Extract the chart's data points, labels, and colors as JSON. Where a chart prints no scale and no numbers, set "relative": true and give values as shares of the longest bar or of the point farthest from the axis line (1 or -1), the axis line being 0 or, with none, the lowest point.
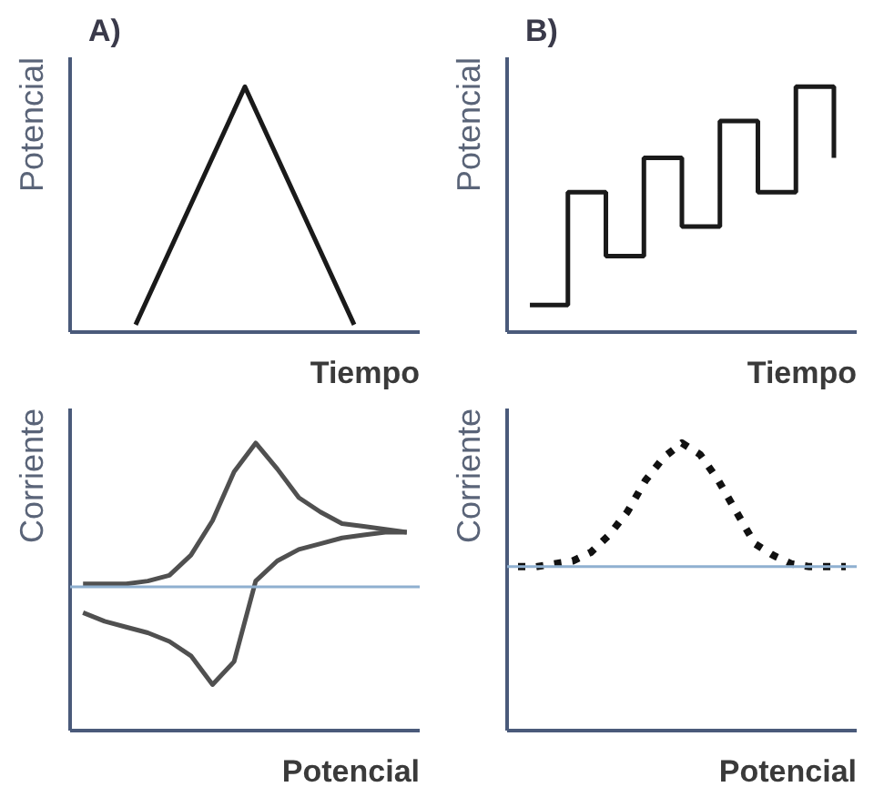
{
  "chart_data": [
    {
      "type": "line",
      "title": "A)",
      "xlabel": "Tiempo",
      "ylabel": "Potencial",
      "relative": true,
      "tick_labels": false,
      "categories": [
        null,
        null,
        null
      ],
      "series": [
        {
          "color": "#1a1a1a",
          "values": [
            0.03,
            1,
            0.03
          ]
        }
      ]
    },
    {
      "type": "step",
      "title": "B)",
      "xlabel": "Tiempo",
      "ylabel": "Potencial",
      "relative": true,
      "tick_labels": false,
      "categories": [
        null,
        null,
        null,
        null,
        null,
        null,
        null,
        null,
        null
      ],
      "series": [
        {
          "color": "#1a1a1a",
          "values": [
            0.11,
            0.57,
            0.31,
            0.71,
            0.43,
            0.86,
            0.57,
            1,
            0.71
          ]
        }
      ]
    },
    {
      "type": "line",
      "xlabel": "Potencial",
      "ylabel": "Corriente",
      "relative": true,
      "tick_labels": false,
      "categories": [
        null,
        null,
        null,
        null,
        null,
        null,
        null,
        null,
        null,
        null,
        null,
        null,
        null,
        null,
        null,
        null
      ],
      "ref_lines": [
        {
          "axis": "y",
          "value": 0.5,
          "color": "#8fb0d0"
        }
      ],
      "series": [
        {
          "color": "#505050",
          "values": [
            0.51,
            0.51,
            0.51,
            0.52,
            0.54,
            0.61,
            0.73,
            0.9,
            1,
            0.91,
            0.81,
            0.76,
            0.72,
            0.71,
            0.7,
            0.69
          ]
        },
        {
          "color": "#505050",
          "values": [
            0.41,
            0.38,
            0.36,
            0.34,
            0.31,
            0.26,
            0.16,
            0.24,
            0.52,
            0.59,
            0.63,
            0.65,
            0.67,
            0.68,
            0.69,
            0.69
          ]
        }
      ]
    },
    {
      "type": "line",
      "xlabel": "Potencial",
      "ylabel": "Corriente",
      "relative": true,
      "tick_labels": false,
      "line_style": "dotted",
      "categories": [
        null,
        null,
        null,
        null,
        null,
        null,
        null,
        null,
        null,
        null,
        null,
        null,
        null,
        null,
        null,
        null,
        null,
        null,
        null
      ],
      "ref_lines": [
        {
          "axis": "y",
          "value": 0.57,
          "color": "#8fb0d0"
        }
      ],
      "series": [
        {
          "color": "#111111",
          "values": [
            0.57,
            0.57,
            0.58,
            0.59,
            0.62,
            0.68,
            0.76,
            0.87,
            0.95,
            1,
            0.96,
            0.87,
            0.76,
            0.65,
            0.61,
            0.58,
            0.57,
            0.57,
            0.57
          ]
        }
      ]
    }
  ]
}
